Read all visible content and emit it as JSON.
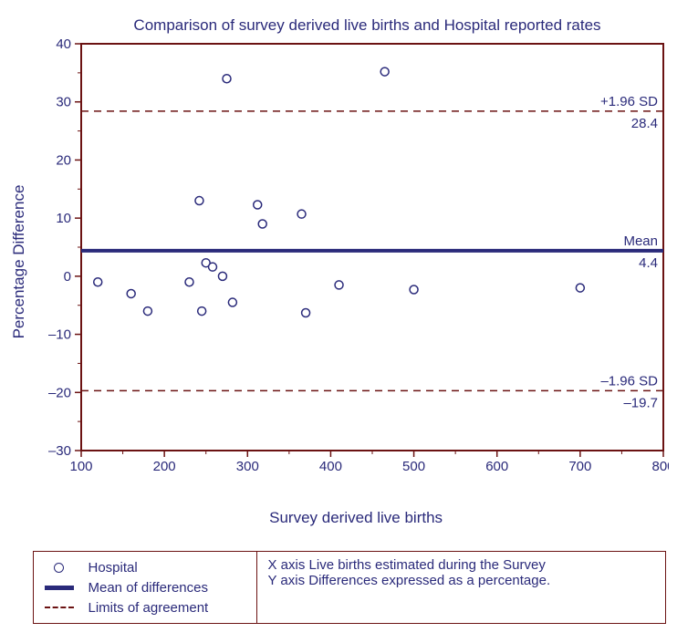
{
  "chart": {
    "type": "scatter",
    "title": "Comparison of survey derived live births and Hospital reported rates",
    "xlabel": "Survey derived live births",
    "ylabel": "Percentage Difference",
    "xlim": [
      100,
      800
    ],
    "ylim": [
      -30,
      40
    ],
    "xticks": [
      100,
      200,
      300,
      400,
      500,
      600,
      700,
      800
    ],
    "yticks": [
      -30,
      -20,
      -10,
      0,
      10,
      20,
      30,
      40
    ],
    "ytick_labels": [
      "–30",
      "–20",
      "–10",
      "0",
      "10",
      "20",
      "30",
      "40"
    ],
    "xtick_labels": [
      "100",
      "200",
      "300",
      "400",
      "500",
      "600",
      "700",
      "800"
    ],
    "border_color": "#6b1212",
    "border_width": 2,
    "tick_color": "#6b1212",
    "background_color": "#ffffff",
    "text_color": "#2a2a7a",
    "label_fontsize": 17,
    "tick_fontsize": 15,
    "annotation_fontsize": 15,
    "marker_radius": 4.5,
    "marker_stroke": "#2a2a7a",
    "marker_fill": "#ffffff",
    "marker_stroke_width": 1.5,
    "mean_line": {
      "value": 4.4,
      "color": "#2a2a7a",
      "width": 4,
      "label_top": "Mean",
      "label_bottom": "4.4"
    },
    "upper_limit": {
      "value": 28.4,
      "color": "#6b1212",
      "width": 1.5,
      "dash": "8,6",
      "label_top": "+1.96 SD",
      "label_bottom": "28.4"
    },
    "lower_limit": {
      "value": -19.7,
      "color": "#6b1212",
      "width": 1.5,
      "dash": "8,6",
      "label_top": "–1.96 SD",
      "label_bottom": "–19.7"
    },
    "points": [
      {
        "x": 120,
        "y": -1
      },
      {
        "x": 160,
        "y": -3
      },
      {
        "x": 180,
        "y": -6
      },
      {
        "x": 230,
        "y": -1
      },
      {
        "x": 242,
        "y": 13
      },
      {
        "x": 245,
        "y": -6
      },
      {
        "x": 250,
        "y": 2.3
      },
      {
        "x": 258,
        "y": 1.6
      },
      {
        "x": 270,
        "y": 0
      },
      {
        "x": 275,
        "y": 34
      },
      {
        "x": 282,
        "y": -4.5
      },
      {
        "x": 312,
        "y": 12.3
      },
      {
        "x": 318,
        "y": 9
      },
      {
        "x": 365,
        "y": 10.7
      },
      {
        "x": 370,
        "y": -6.3
      },
      {
        "x": 410,
        "y": -1.5
      },
      {
        "x": 465,
        "y": 35.2
      },
      {
        "x": 500,
        "y": -2.3
      },
      {
        "x": 700,
        "y": -2
      }
    ]
  },
  "legend": {
    "hospital": "Hospital",
    "mean": "Mean of differences",
    "limits": "Limits of agreement",
    "xaxis_desc": "X axis  Live births estimated during the Survey",
    "yaxis_desc": "Y axis  Differences expressed as a percentage."
  }
}
